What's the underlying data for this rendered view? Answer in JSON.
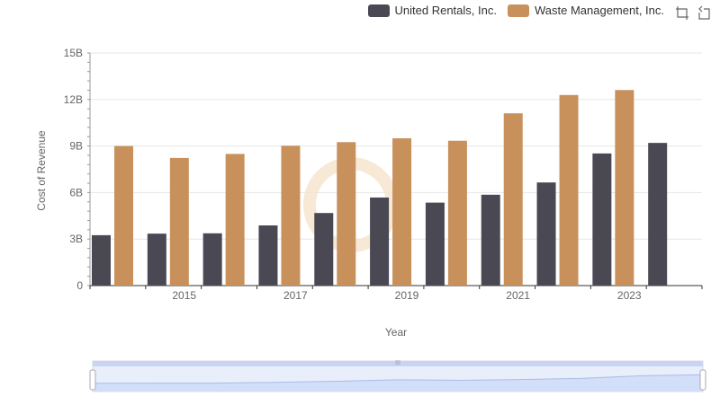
{
  "chart_data": {
    "type": "bar",
    "title": "",
    "xlabel": "Year",
    "ylabel": "Cost of Revenue",
    "ylim": [
      0,
      15000000000
    ],
    "y_ticks": [
      "0",
      "3B",
      "6B",
      "9B",
      "12B",
      "15B"
    ],
    "x_tick_labels": [
      "2015",
      "2017",
      "2019",
      "2021",
      "2023"
    ],
    "categories": [
      "2014",
      "2015",
      "2016",
      "2017",
      "2018",
      "2019",
      "2020",
      "2021",
      "2022",
      "2023",
      "2024"
    ],
    "series": [
      {
        "name": "United Rentals, Inc.",
        "color": "#4a4953",
        "values": [
          3250000000,
          3350000000,
          3370000000,
          3880000000,
          4680000000,
          5680000000,
          5350000000,
          5860000000,
          6650000000,
          8520000000,
          9200000000
        ]
      },
      {
        "name": "Waste Management, Inc.",
        "color": "#c8915c",
        "values": [
          9000000000,
          8230000000,
          8490000000,
          9020000000,
          9250000000,
          9500000000,
          9340000000,
          11110000000,
          12290000000,
          12610000000,
          null
        ]
      }
    ],
    "grid": true,
    "legend_position": "top-right",
    "has_data_zoom_slider": true
  },
  "toolbox": {
    "zoom_icon": "zoom-icon",
    "restore_icon": "restore-icon"
  }
}
